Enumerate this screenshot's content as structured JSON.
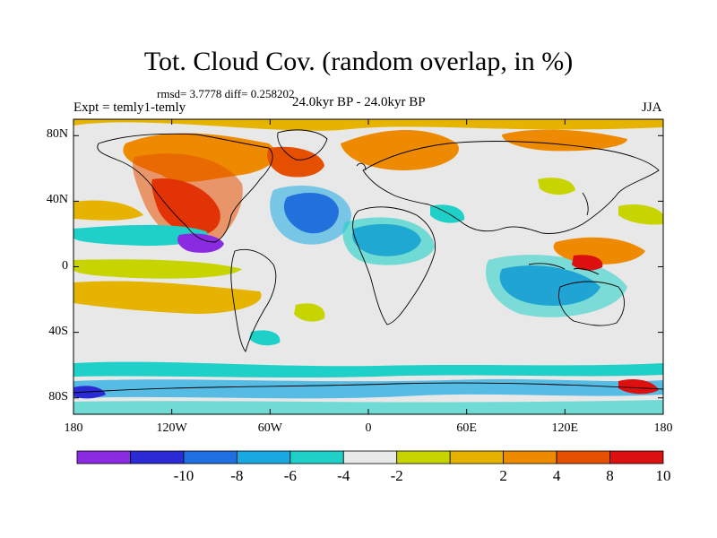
{
  "title": "Tot. Cloud Cov. (random overlap, in %)",
  "stats": "rmsd= 3.7778  diff= 0.258202",
  "experiment": "Expt = temly1-temly",
  "period": "24.0kyr BP - 24.0kyr BP",
  "season": "JJA",
  "axes": {
    "y_ticks": [
      {
        "label": "80N",
        "value": 80
      },
      {
        "label": "40N",
        "value": 40
      },
      {
        "label": "0",
        "value": 0
      },
      {
        "label": "40S",
        "value": -40
      },
      {
        "label": "80S",
        "value": -80
      }
    ],
    "x_ticks": [
      {
        "label": "180",
        "value": -180
      },
      {
        "label": "120W",
        "value": -120
      },
      {
        "label": "60W",
        "value": -60
      },
      {
        "label": "0",
        "value": 0
      },
      {
        "label": "60E",
        "value": 60
      },
      {
        "label": "120E",
        "value": 120
      },
      {
        "label": "180",
        "value": 180
      }
    ]
  },
  "colorbar": {
    "colors": [
      "#8a2be2",
      "#2b2bd6",
      "#1f6fe0",
      "#19a9e2",
      "#1fd0c8",
      "#e8e8e8",
      "#c8d400",
      "#e6b400",
      "#ee8a00",
      "#e55000",
      "#dd1010"
    ],
    "labels": [
      "-10",
      "-8",
      "-6",
      "-4",
      "-2",
      "2",
      "4",
      "8",
      "10"
    ]
  },
  "colors": {
    "neutral": "#e8e8e8",
    "coast": "#000000"
  }
}
